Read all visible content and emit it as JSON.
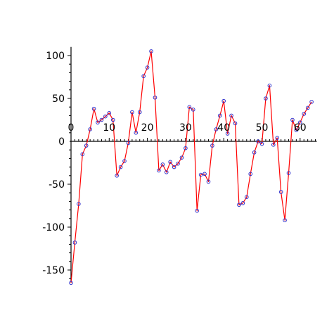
{
  "chart_data": {
    "type": "line",
    "title": "",
    "xlabel": "",
    "ylabel": "",
    "xlim": [
      0,
      64
    ],
    "ylim": [
      -165,
      110
    ],
    "xticks": [
      0,
      10,
      20,
      30,
      40,
      50,
      60
    ],
    "yticks": [
      -150,
      -100,
      -50,
      0,
      50,
      100
    ],
    "xtick_labels": [
      "0",
      "10",
      "20",
      "30",
      "40",
      "50",
      "60"
    ],
    "ytick_labels": [
      "-150",
      "-100",
      "-50",
      "0",
      "50",
      "100"
    ],
    "grid": false,
    "line_color": "#ff0000",
    "marker_color": "#3333cc",
    "series": [
      {
        "x": [
          0,
          1,
          2,
          3,
          4,
          5,
          6,
          7,
          8,
          9,
          10,
          11,
          12,
          13,
          14,
          15,
          16,
          17,
          18,
          19,
          20,
          21,
          22,
          23,
          24,
          25,
          26,
          27,
          28,
          29,
          30,
          31,
          32,
          33,
          34,
          35,
          36,
          37,
          38,
          39,
          40,
          41,
          42,
          43,
          44,
          45,
          46,
          47,
          48,
          49,
          50,
          51,
          52,
          53,
          54,
          55,
          56,
          57,
          58,
          59,
          60,
          61,
          62,
          63
        ],
        "y": [
          -165,
          -118,
          -73,
          -15,
          -5,
          14,
          38,
          22,
          25,
          29,
          33,
          25,
          -40,
          -30,
          -23,
          -2,
          34,
          10,
          34,
          76,
          86,
          105,
          51,
          -34,
          -27,
          -36,
          -24,
          -30,
          -26,
          -19,
          -8,
          40,
          37,
          -81,
          -39,
          -38,
          -47,
          -5,
          14,
          30,
          47,
          9,
          30,
          21,
          -74,
          -72,
          -65,
          -38,
          -13,
          0,
          -3,
          50,
          65,
          -4,
          4,
          -59,
          -92,
          -37,
          25,
          13,
          22,
          32,
          39,
          46
        ]
      }
    ]
  }
}
